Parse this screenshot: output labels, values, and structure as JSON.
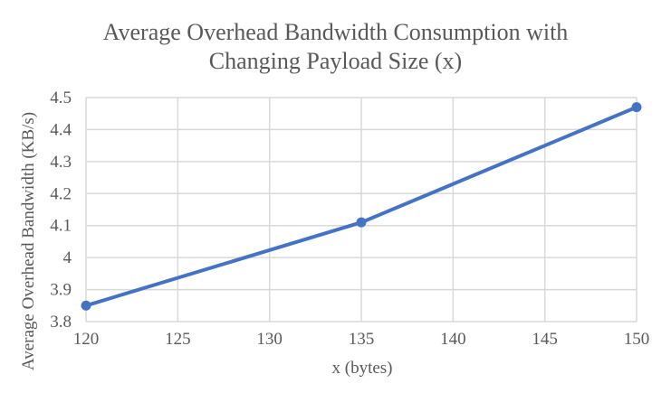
{
  "chart": {
    "title_line1": "Average Overhead Bandwidth Consumption with",
    "title_line2": "Changing Payload Size (x)",
    "y_axis_title": "Average Overhead Bandwidth (KB/s)",
    "x_axis_title": "x (bytes)"
  },
  "chart_data": {
    "type": "line",
    "title": "Average Overhead Bandwidth Consumption with Changing Payload Size (x)",
    "xlabel": "x (bytes)",
    "ylabel": "Average Overhead Bandwidth (KB/s)",
    "x": [
      120,
      135,
      150
    ],
    "series": [
      {
        "name": "Average Overhead Bandwidth",
        "values": [
          3.85,
          4.11,
          4.47
        ]
      }
    ],
    "xlim": [
      120,
      150
    ],
    "ylim": [
      3.8,
      4.5
    ],
    "xticks": [
      "120",
      "125",
      "130",
      "135",
      "140",
      "145",
      "150"
    ],
    "yticks": [
      "3.8",
      "3.9",
      "4",
      "4.1",
      "4.2",
      "4.3",
      "4.4",
      "4.5"
    ],
    "grid": true,
    "legend": "none",
    "marker": "circle",
    "colors": {
      "line": "#4472C4",
      "marker": "#4472C4",
      "gridline": "#D9D9D9",
      "text": "#595959",
      "background": "#FFFFFF"
    }
  }
}
